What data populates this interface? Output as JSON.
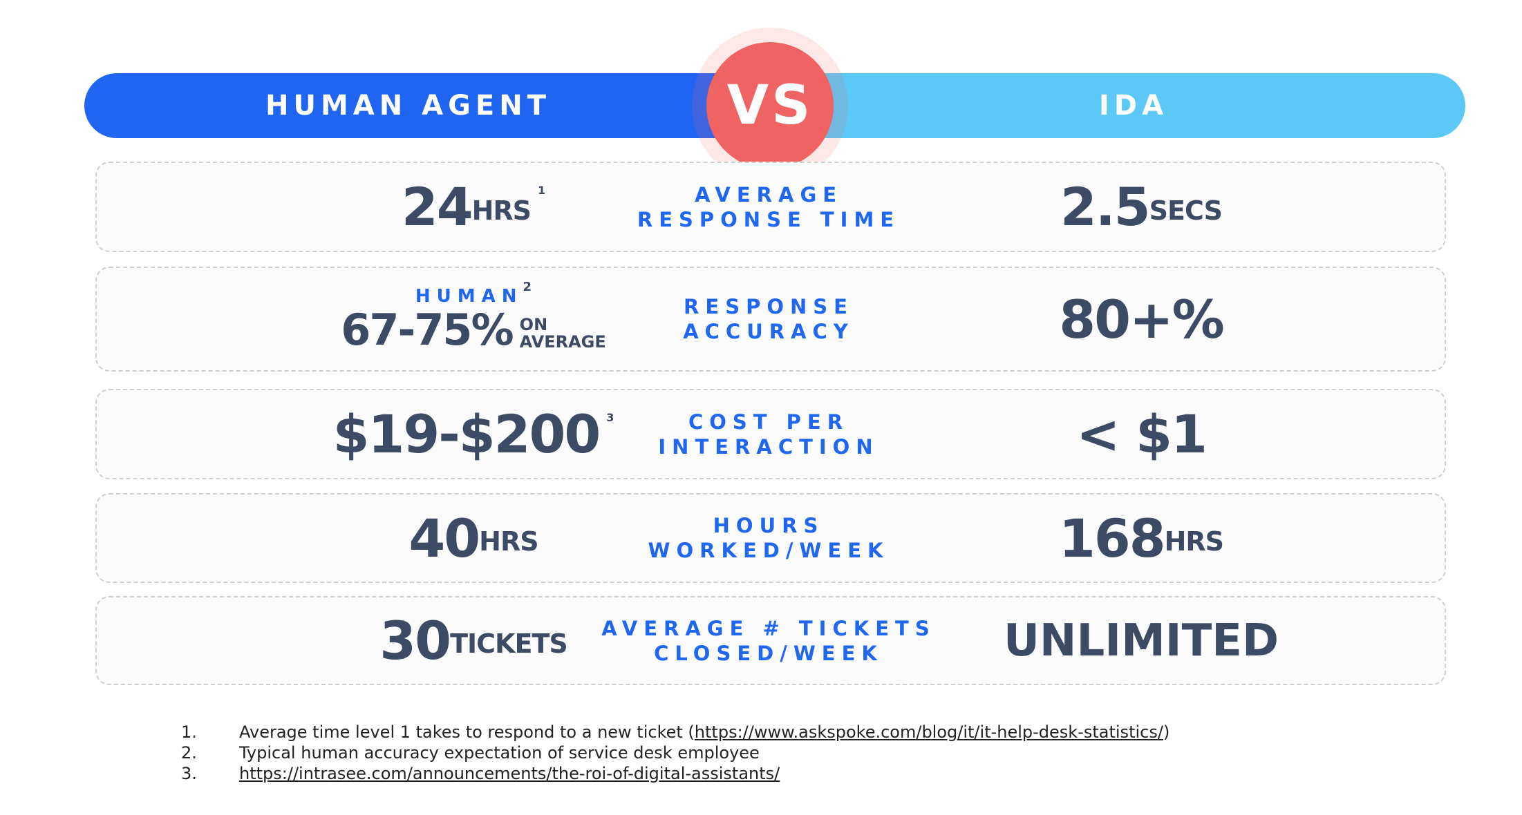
{
  "header": {
    "left": "HUMAN AGENT",
    "vs": "VS",
    "right": "IDA"
  },
  "rows": [
    {
      "left": {
        "value": "24",
        "unit": "HRS",
        "sup": "1"
      },
      "middle": [
        "AVERAGE",
        "RESPONSE TIME"
      ],
      "right": {
        "value": "2.5",
        "unit": "SECS"
      }
    },
    {
      "left": {
        "label": "HUMAN",
        "sup": "2",
        "value": "67-75%",
        "unit_lines": [
          "ON",
          "AVERAGE"
        ]
      },
      "middle": [
        "RESPONSE",
        "ACCURACY"
      ],
      "right": {
        "value": "80+%"
      }
    },
    {
      "left": {
        "value": "$19-$200",
        "sup": "3"
      },
      "middle": [
        "COST PER",
        "INTERACTION"
      ],
      "right": {
        "value": "< $1"
      }
    },
    {
      "left": {
        "value": "40",
        "unit": "HRS"
      },
      "middle": [
        "HOURS",
        "WORKED/WEEK"
      ],
      "right": {
        "value": "168",
        "unit": "HRS"
      }
    },
    {
      "left": {
        "value": "30",
        "unit": "TICKETS"
      },
      "middle": [
        "AVERAGE # TICKETS",
        "CLOSED/WEEK"
      ],
      "right": {
        "value": "UNLIMITED"
      }
    }
  ],
  "footnotes": [
    {
      "number": "1.",
      "text": "Average time level 1 takes to respond to a new ticket (",
      "link": "https://www.askspoke.com/blog/it/it-help-desk-statistics/",
      "after": ")"
    },
    {
      "number": "2.",
      "text": "Typical human accuracy expectation of service desk employee"
    },
    {
      "number": "3.",
      "link": "https://intrasee.com/announcements/the-roi-of-digital-assistants/"
    }
  ]
}
